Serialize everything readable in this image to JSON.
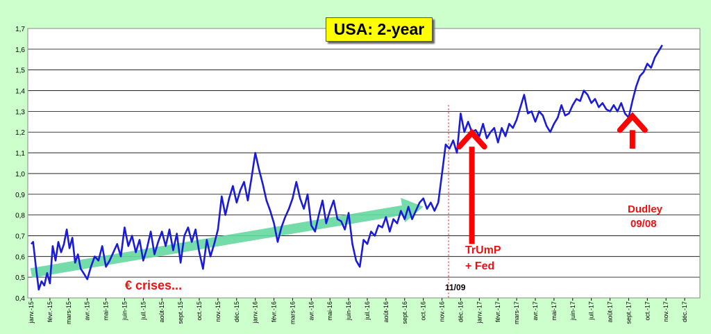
{
  "chart_data": {
    "type": "line",
    "title": "USA: 2-year",
    "ylim": [
      0.4,
      1.7
    ],
    "y_ticks": [
      "0,4",
      "0,5",
      "0,6",
      "0,7",
      "0,8",
      "0,9",
      "1,0",
      "1,1",
      "1,2",
      "1,3",
      "1,4",
      "1,5",
      "1,6",
      "1,7"
    ],
    "x_ticks": [
      "janv.-15",
      "févr.-15",
      "mars-15",
      "avr.-15",
      "mai-15",
      "juin-15",
      "juil.-15",
      "août-15",
      "sept.-15",
      "oct.-15",
      "nov.-15",
      "déc.-15",
      "janv.-16",
      "févr.-16",
      "mars-16",
      "avr.-16",
      "mai-16",
      "juin-16",
      "juil.-16",
      "août-16",
      "sept.-16",
      "oct.-16",
      "nov.-16",
      "déc.-16",
      "janv.-17",
      "févr.-17",
      "mars-17",
      "avr.-17",
      "mai-17",
      "juin-17",
      "juil.-17",
      "août-17",
      "sept.-17",
      "oct.-17",
      "nov.-17",
      "déc.-17"
    ],
    "grid": true,
    "series": [
      {
        "color": "#1a1adb",
        "points": [
          [
            0.0,
            0.66
          ],
          [
            0.1,
            0.67
          ],
          [
            0.25,
            0.55
          ],
          [
            0.4,
            0.44
          ],
          [
            0.55,
            0.48
          ],
          [
            0.7,
            0.46
          ],
          [
            0.85,
            0.52
          ],
          [
            1.0,
            0.47
          ],
          [
            1.15,
            0.65
          ],
          [
            1.3,
            0.58
          ],
          [
            1.45,
            0.67
          ],
          [
            1.6,
            0.62
          ],
          [
            1.75,
            0.66
          ],
          [
            1.9,
            0.73
          ],
          [
            2.05,
            0.64
          ],
          [
            2.2,
            0.69
          ],
          [
            2.35,
            0.57
          ],
          [
            2.5,
            0.61
          ],
          [
            2.65,
            0.54
          ],
          [
            2.8,
            0.52
          ],
          [
            3.0,
            0.49
          ],
          [
            3.2,
            0.55
          ],
          [
            3.4,
            0.6
          ],
          [
            3.6,
            0.58
          ],
          [
            3.8,
            0.65
          ],
          [
            4.0,
            0.55
          ],
          [
            4.2,
            0.58
          ],
          [
            4.4,
            0.62
          ],
          [
            4.6,
            0.66
          ],
          [
            4.8,
            0.6
          ],
          [
            5.0,
            0.74
          ],
          [
            5.2,
            0.65
          ],
          [
            5.4,
            0.7
          ],
          [
            5.6,
            0.62
          ],
          [
            5.8,
            0.68
          ],
          [
            6.0,
            0.58
          ],
          [
            6.2,
            0.64
          ],
          [
            6.4,
            0.72
          ],
          [
            6.6,
            0.61
          ],
          [
            6.8,
            0.67
          ],
          [
            7.0,
            0.72
          ],
          [
            7.2,
            0.65
          ],
          [
            7.4,
            0.73
          ],
          [
            7.6,
            0.63
          ],
          [
            7.8,
            0.71
          ],
          [
            8.0,
            0.57
          ],
          [
            8.2,
            0.7
          ],
          [
            8.4,
            0.74
          ],
          [
            8.6,
            0.67
          ],
          [
            8.8,
            0.73
          ],
          [
            9.0,
            0.62
          ],
          [
            9.2,
            0.54
          ],
          [
            9.4,
            0.68
          ],
          [
            9.6,
            0.6
          ],
          [
            9.8,
            0.66
          ],
          [
            10.0,
            0.73
          ],
          [
            10.2,
            0.89
          ],
          [
            10.4,
            0.8
          ],
          [
            10.6,
            0.88
          ],
          [
            10.8,
            0.94
          ],
          [
            11.0,
            0.86
          ],
          [
            11.2,
            0.92
          ],
          [
            11.4,
            0.96
          ],
          [
            11.6,
            0.87
          ],
          [
            11.8,
            0.98
          ],
          [
            12.0,
            1.1
          ],
          [
            12.2,
            1.02
          ],
          [
            12.4,
            0.95
          ],
          [
            12.6,
            0.87
          ],
          [
            12.8,
            0.82
          ],
          [
            13.0,
            0.76
          ],
          [
            13.2,
            0.67
          ],
          [
            13.4,
            0.74
          ],
          [
            13.6,
            0.79
          ],
          [
            13.8,
            0.83
          ],
          [
            14.0,
            0.88
          ],
          [
            14.2,
            0.96
          ],
          [
            14.4,
            0.88
          ],
          [
            14.6,
            0.83
          ],
          [
            14.8,
            0.9
          ],
          [
            15.0,
            0.75
          ],
          [
            15.2,
            0.72
          ],
          [
            15.4,
            0.8
          ],
          [
            15.6,
            0.87
          ],
          [
            15.8,
            0.76
          ],
          [
            16.0,
            0.82
          ],
          [
            16.2,
            0.87
          ],
          [
            16.4,
            0.78
          ],
          [
            16.6,
            0.77
          ],
          [
            16.8,
            0.73
          ],
          [
            17.0,
            0.81
          ],
          [
            17.2,
            0.66
          ],
          [
            17.4,
            0.58
          ],
          [
            17.6,
            0.55
          ],
          [
            17.8,
            0.68
          ],
          [
            18.0,
            0.66
          ],
          [
            18.2,
            0.72
          ],
          [
            18.4,
            0.7
          ],
          [
            18.6,
            0.75
          ],
          [
            18.8,
            0.74
          ],
          [
            19.0,
            0.79
          ],
          [
            19.2,
            0.72
          ],
          [
            19.4,
            0.78
          ],
          [
            19.6,
            0.76
          ],
          [
            19.8,
            0.82
          ],
          [
            20.0,
            0.78
          ],
          [
            20.2,
            0.84
          ],
          [
            20.4,
            0.78
          ],
          [
            20.6,
            0.82
          ],
          [
            20.8,
            0.86
          ],
          [
            21.0,
            0.88
          ],
          [
            21.2,
            0.83
          ],
          [
            21.4,
            0.86
          ],
          [
            21.6,
            0.82
          ],
          [
            21.8,
            0.86
          ],
          [
            22.0,
            1.0
          ],
          [
            22.2,
            1.14
          ],
          [
            22.4,
            1.12
          ],
          [
            22.6,
            1.16
          ],
          [
            22.8,
            1.1
          ],
          [
            23.0,
            1.29
          ],
          [
            23.2,
            1.2
          ],
          [
            23.4,
            1.25
          ],
          [
            23.6,
            1.2
          ],
          [
            23.8,
            1.21
          ],
          [
            24.0,
            1.18
          ],
          [
            24.2,
            1.24
          ],
          [
            24.4,
            1.17
          ],
          [
            24.6,
            1.2
          ],
          [
            24.8,
            1.22
          ],
          [
            25.0,
            1.15
          ],
          [
            25.2,
            1.22
          ],
          [
            25.4,
            1.18
          ],
          [
            25.6,
            1.24
          ],
          [
            25.8,
            1.22
          ],
          [
            26.0,
            1.26
          ],
          [
            26.2,
            1.32
          ],
          [
            26.4,
            1.38
          ],
          [
            26.6,
            1.29
          ],
          [
            26.8,
            1.3
          ],
          [
            27.0,
            1.25
          ],
          [
            27.2,
            1.3
          ],
          [
            27.4,
            1.28
          ],
          [
            27.6,
            1.23
          ],
          [
            27.8,
            1.2
          ],
          [
            28.0,
            1.24
          ],
          [
            28.2,
            1.27
          ],
          [
            28.4,
            1.33
          ],
          [
            28.6,
            1.28
          ],
          [
            28.8,
            1.29
          ],
          [
            29.0,
            1.33
          ],
          [
            29.2,
            1.36
          ],
          [
            29.4,
            1.35
          ],
          [
            29.6,
            1.4
          ],
          [
            29.8,
            1.38
          ],
          [
            30.0,
            1.34
          ],
          [
            30.2,
            1.36
          ],
          [
            30.4,
            1.32
          ],
          [
            30.6,
            1.34
          ],
          [
            30.8,
            1.31
          ],
          [
            31.0,
            1.3
          ],
          [
            31.2,
            1.33
          ],
          [
            31.4,
            1.3
          ],
          [
            31.6,
            1.34
          ],
          [
            31.8,
            1.29
          ],
          [
            32.0,
            1.27
          ],
          [
            32.2,
            1.35
          ],
          [
            32.4,
            1.42
          ],
          [
            32.6,
            1.47
          ],
          [
            32.8,
            1.49
          ],
          [
            33.0,
            1.53
          ],
          [
            33.2,
            1.51
          ],
          [
            33.4,
            1.56
          ],
          [
            33.6,
            1.59
          ],
          [
            33.8,
            1.62
          ]
        ]
      }
    ],
    "annotations": {
      "crises": "€ crises...",
      "trump": "TrUmP",
      "fed": "+ Fed",
      "dudley": "Dudley",
      "dudley_date": "09/08",
      "election": "11/09"
    },
    "marker_x": 22.35,
    "trend_arrow": {
      "from": [
        0.0,
        0.52
      ],
      "to": [
        21.0,
        0.84
      ],
      "color": "#66d9a0"
    },
    "red_arrows": [
      {
        "x": 23.6,
        "tip": 1.21,
        "base": 0.66
      },
      {
        "x": 32.2,
        "tip": 1.29,
        "base": 1.12
      }
    ]
  }
}
